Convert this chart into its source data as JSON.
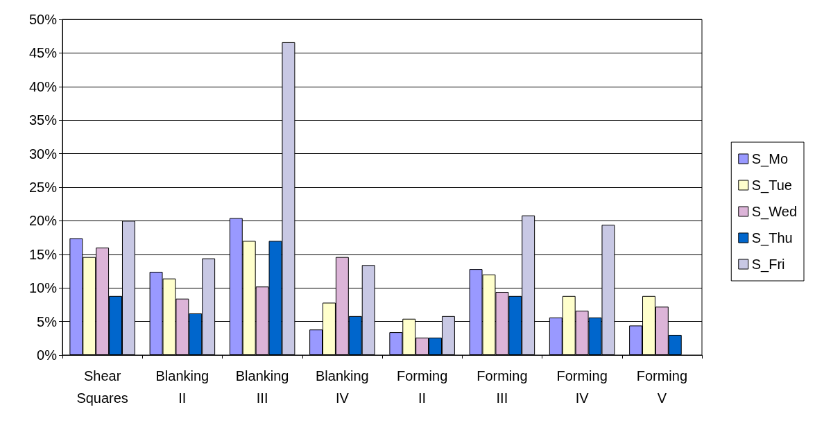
{
  "chart_data": {
    "type": "bar",
    "categories": [
      "Shear\nSquares",
      "Blanking\nII",
      "Blanking\nIII",
      "Blanking\nIV",
      "Forming\nII",
      "Forming\nIII",
      "Forming\nIV",
      "Forming\nV"
    ],
    "series": [
      {
        "name": "S_Mo",
        "color": "#9999ff",
        "values": [
          17.4,
          12.4,
          20.4,
          3.8,
          3.4,
          12.8,
          5.6,
          4.4
        ]
      },
      {
        "name": "S_Tue",
        "color": "#ffffcc",
        "values": [
          14.6,
          11.4,
          17.0,
          7.8,
          5.4,
          12.0,
          8.8,
          8.8
        ]
      },
      {
        "name": "S_Wed",
        "color": "#dcb4d8",
        "values": [
          16.0,
          8.4,
          10.2,
          14.6,
          2.6,
          9.4,
          6.6,
          7.2
        ]
      },
      {
        "name": "S_Thu",
        "color": "#0066cc",
        "values": [
          8.8,
          6.2,
          17.0,
          5.8,
          2.6,
          8.8,
          5.6,
          3.0
        ]
      },
      {
        "name": "S_Fri",
        "color": "#c8c8e4",
        "values": [
          20.0,
          14.4,
          46.6,
          13.4,
          5.8,
          20.8,
          19.4,
          null
        ]
      }
    ],
    "ylim": [
      0,
      50
    ],
    "yticks": [
      {
        "value": 0,
        "label": "0%"
      },
      {
        "value": 5,
        "label": "5%"
      },
      {
        "value": 10,
        "label": "10%"
      },
      {
        "value": 15,
        "label": "15%"
      },
      {
        "value": 20,
        "label": "20%"
      },
      {
        "value": 25,
        "label": "25%"
      },
      {
        "value": 30,
        "label": "30%"
      },
      {
        "value": 35,
        "label": "35%"
      },
      {
        "value": 40,
        "label": "40%"
      },
      {
        "value": 45,
        "label": "45%"
      },
      {
        "value": 50,
        "label": "50%"
      }
    ],
    "grid": "y",
    "legend": "right"
  }
}
